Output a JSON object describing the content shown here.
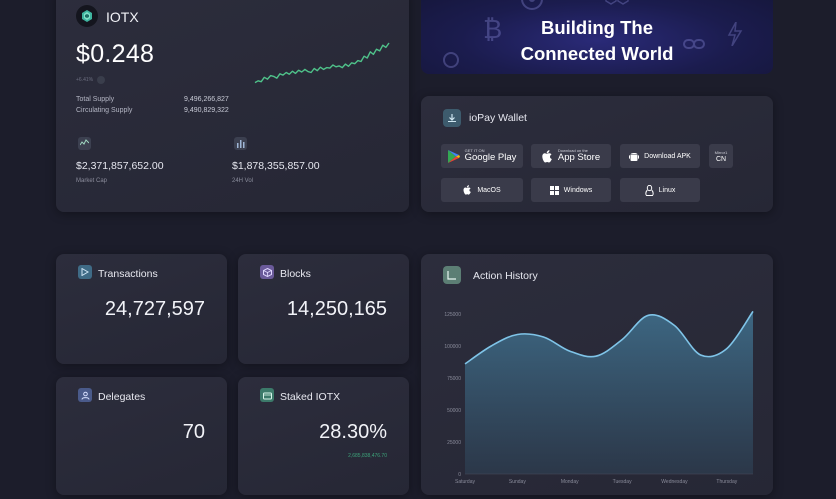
{
  "price_card": {
    "token": "IOTX",
    "price": "$0.248",
    "change": "+6.41%",
    "total_supply_label": "Total Supply",
    "total_supply": "9,496,266,827",
    "circulating_supply_label": "Circulating Supply",
    "circulating_supply": "9,490,829,322",
    "market_cap": "$2,371,857,652.00",
    "market_cap_label": "Market Cap",
    "volume": "$1,878,355,857.00",
    "volume_label": "24H Vol",
    "sparkline": [
      0.1,
      0.14,
      0.12,
      0.22,
      0.18,
      0.26,
      0.24,
      0.2,
      0.3,
      0.27,
      0.33,
      0.29,
      0.36,
      0.31,
      0.38,
      0.34,
      0.4,
      0.35,
      0.33,
      0.42,
      0.37,
      0.45,
      0.4,
      0.44,
      0.43,
      0.5,
      0.46,
      0.48,
      0.44,
      0.52,
      0.47,
      0.55,
      0.53,
      0.6,
      0.58,
      0.7,
      0.66,
      0.8,
      0.74,
      0.86,
      0.82,
      0.95,
      0.9,
      1.0
    ]
  },
  "banner": {
    "line1": "Building The",
    "line2": "Connected World"
  },
  "wallet": {
    "title": "ioPay Wallet",
    "google_small": "GET IT ON",
    "google_big": "Google Play",
    "apple_small": "Download on the",
    "apple_big": "App Store",
    "apk": "Download APK",
    "mirror_top": "Mirror1",
    "mirror_bottom": "CN",
    "macos": "MacOS",
    "windows": "Windows",
    "linux": "Linux"
  },
  "stats": {
    "transactions_label": "Transactions",
    "transactions": "24,727,597",
    "blocks_label": "Blocks",
    "blocks": "14,250,165",
    "delegates_label": "Delegates",
    "delegates": "70",
    "staked_label": "Staked IOTX",
    "staked": "28.30%",
    "staked_note": "2,685,838,476.70"
  },
  "history": {
    "title": "Action History"
  },
  "colors": {
    "accent_green": "#4fc28a",
    "chart_line": "#7fc4e8",
    "tx_icon": "#3f6b86",
    "blocks_icon": "#6a5a9a",
    "delegates_icon": "#4a5a8a",
    "staked_icon": "#3c7a6a"
  },
  "chart_data": {
    "type": "area",
    "categories": [
      "Saturday",
      "Sunday",
      "Monday",
      "Tuesday",
      "Wednesday",
      "Thursday"
    ],
    "x": [
      0,
      0.5,
      1,
      1.5,
      2,
      2.5,
      3,
      3.5,
      4,
      4.5,
      5,
      5.5
    ],
    "values": [
      86000,
      100000,
      109000,
      107000,
      96000,
      92000,
      105000,
      124000,
      116000,
      93000,
      98000,
      127000
    ],
    "yticks": [
      0,
      25000,
      50000,
      75000,
      100000,
      125000
    ],
    "ylim": [
      0,
      125000
    ],
    "title": "Action History",
    "xlabel": "",
    "ylabel": ""
  }
}
